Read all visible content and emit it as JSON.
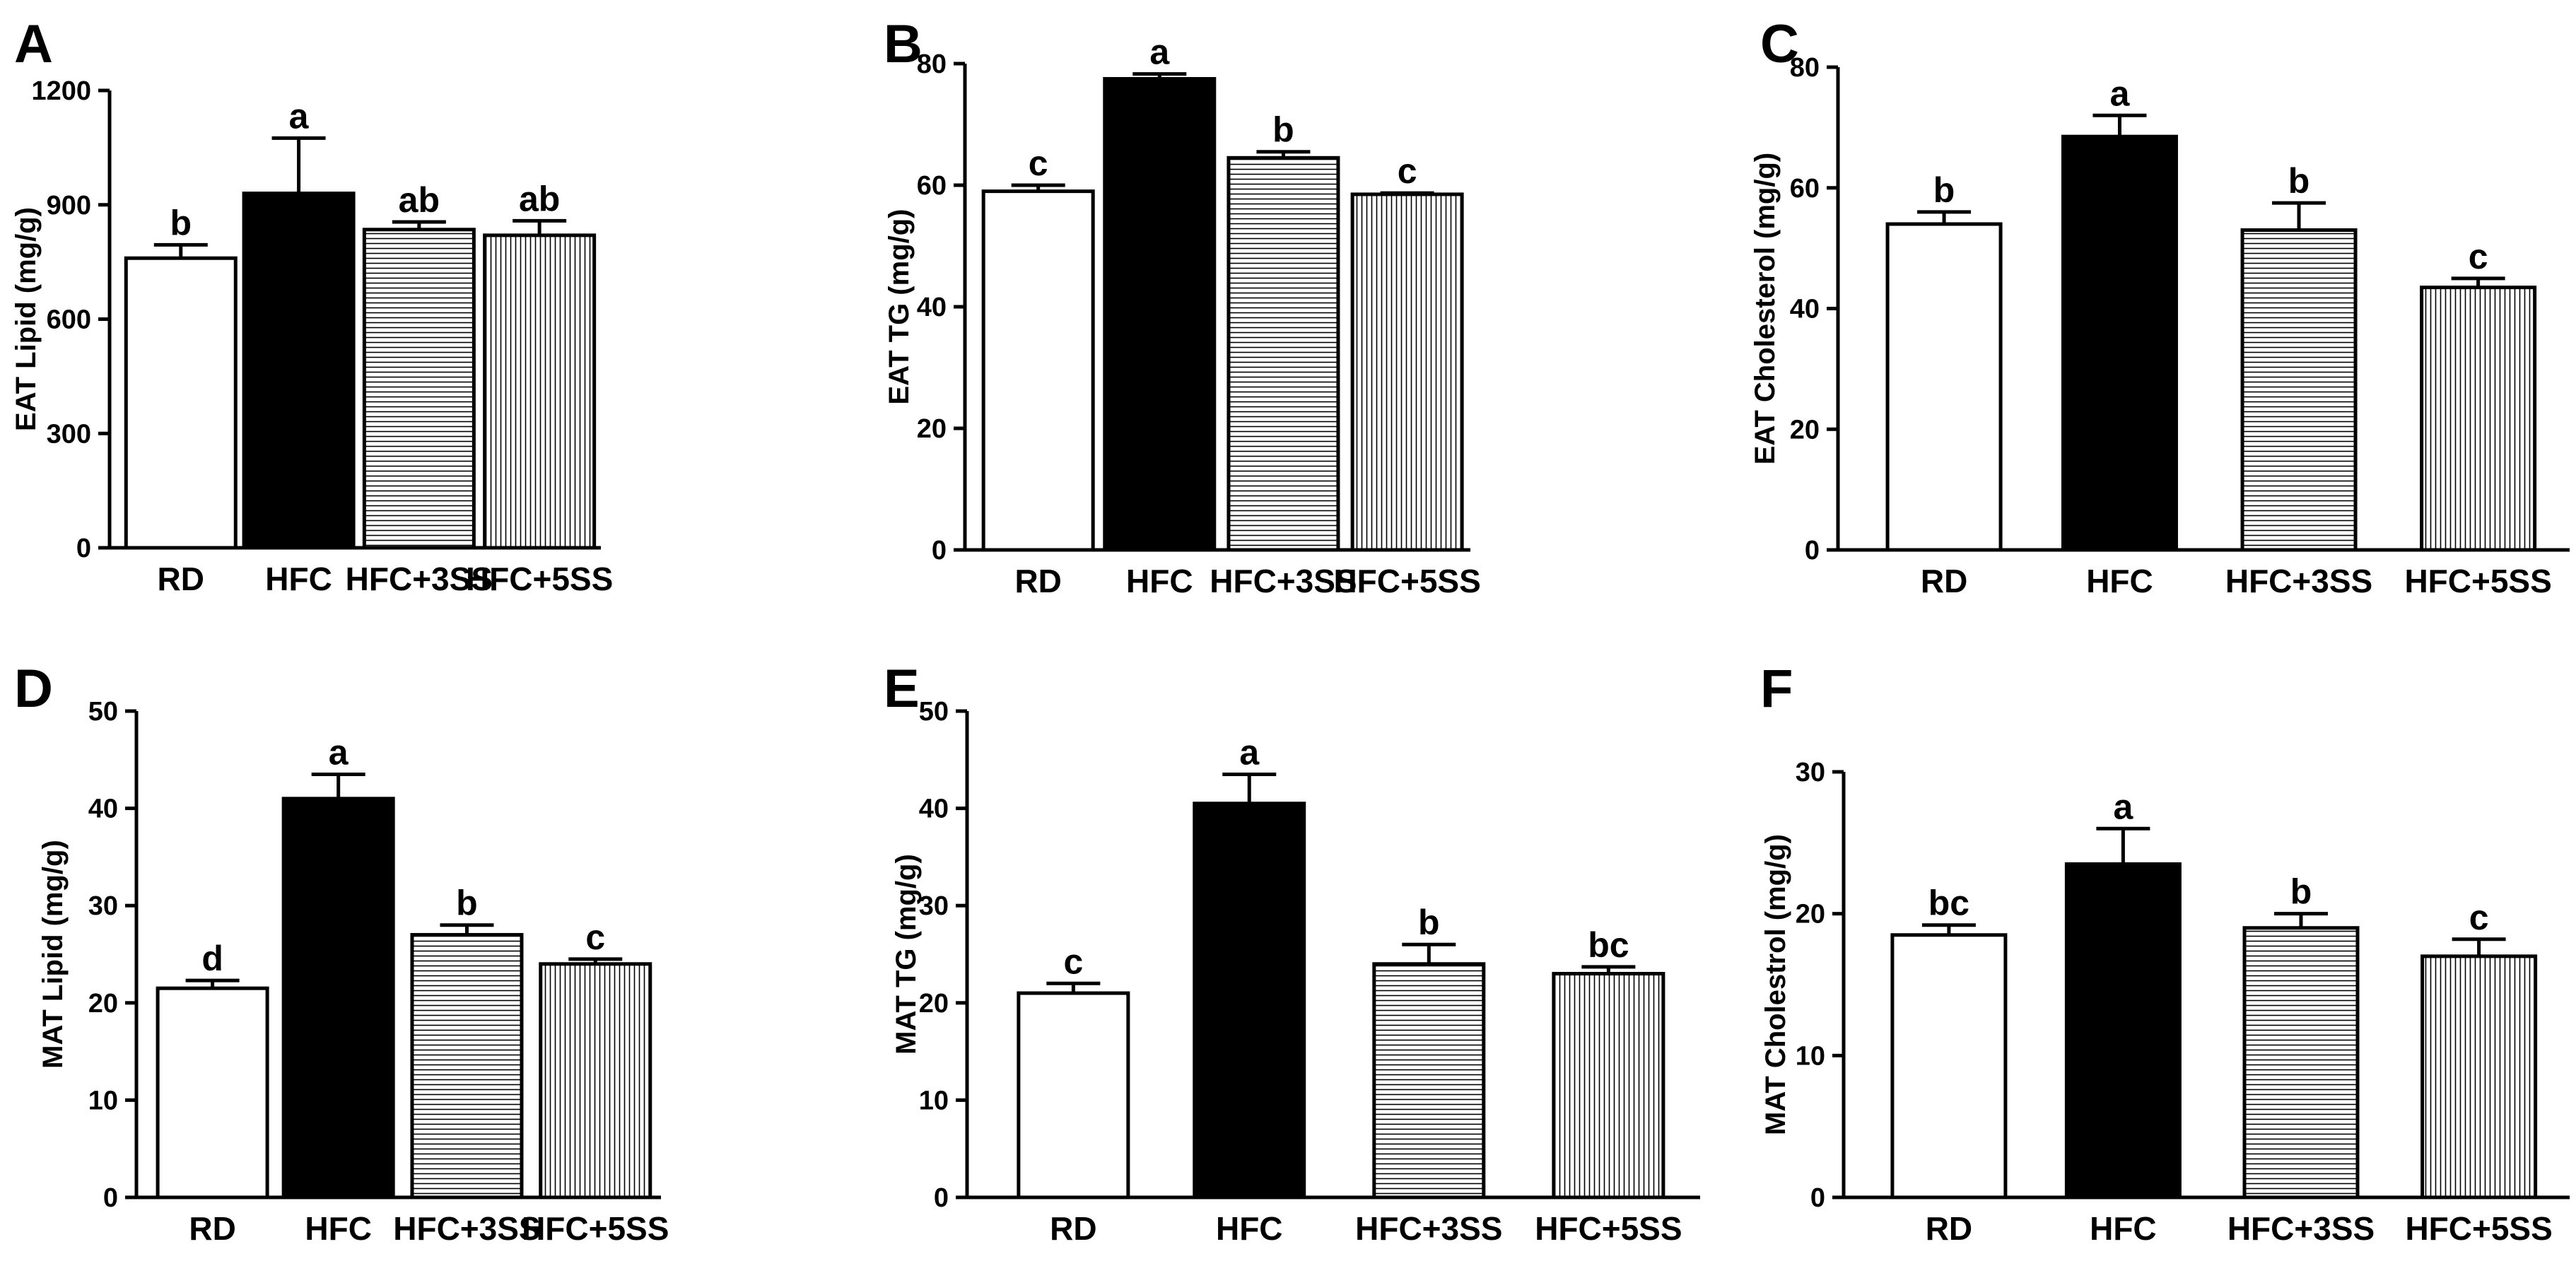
{
  "chart_data": [
    {
      "panel": "A",
      "type": "bar",
      "categories": [
        "RD",
        "HFC",
        "HFC+3SS",
        "HFC+5SS"
      ],
      "values": [
        760,
        930,
        835,
        820
      ],
      "errors": [
        35,
        145,
        20,
        38
      ],
      "letters": [
        "b",
        "a",
        "ab",
        "ab"
      ],
      "ylabel": "EAT Lipid (mg/g)",
      "ylim": [
        0,
        1200
      ],
      "ticks": [
        0,
        300,
        600,
        900,
        1200
      ]
    },
    {
      "panel": "B",
      "type": "bar",
      "categories": [
        "RD",
        "HFC",
        "HFC+3SS",
        "HFC+5SS"
      ],
      "values": [
        59,
        77.5,
        64.5,
        58.5
      ],
      "errors": [
        1,
        0.8,
        1,
        0.2
      ],
      "letters": [
        "c",
        "a",
        "b",
        "c"
      ],
      "ylabel": "EAT TG (mg/g)",
      "ylim": [
        0,
        80
      ],
      "ticks": [
        0,
        20,
        40,
        60,
        80
      ]
    },
    {
      "panel": "C",
      "type": "bar",
      "categories": [
        "RD",
        "HFC",
        "HFC+3SS",
        "HFC+5SS"
      ],
      "values": [
        54,
        68.5,
        53,
        43.5
      ],
      "errors": [
        2,
        3.5,
        4.5,
        1.5
      ],
      "letters": [
        "b",
        "a",
        "b",
        "c"
      ],
      "ylabel": "EAT Cholesterol (mg/g)",
      "ylim": [
        0,
        80
      ],
      "ticks": [
        0,
        20,
        40,
        60,
        80
      ]
    },
    {
      "panel": "D",
      "type": "bar",
      "categories": [
        "RD",
        "HFC",
        "HFC+3SS",
        "HFC+5SS"
      ],
      "values": [
        21.5,
        41,
        27,
        24
      ],
      "errors": [
        0.8,
        2.5,
        1,
        0.5
      ],
      "letters": [
        "d",
        "a",
        "b",
        "c"
      ],
      "ylabel": "MAT Lipid (mg/g)",
      "ylim": [
        0,
        50
      ],
      "ticks": [
        0,
        10,
        20,
        30,
        40,
        50
      ]
    },
    {
      "panel": "E",
      "type": "bar",
      "categories": [
        "RD",
        "HFC",
        "HFC+3SS",
        "HFC+5SS"
      ],
      "values": [
        21,
        40.5,
        24,
        23
      ],
      "errors": [
        1,
        3,
        2,
        0.7
      ],
      "letters": [
        "c",
        "a",
        "b",
        "bc"
      ],
      "ylabel": "MAT TG (mg/g)",
      "ylim": [
        0,
        50
      ],
      "ticks": [
        0,
        10,
        20,
        30,
        40,
        50
      ]
    },
    {
      "panel": "F",
      "type": "bar",
      "categories": [
        "RD",
        "HFC",
        "HFC+3SS",
        "HFC+5SS"
      ],
      "values": [
        18.5,
        23.5,
        19,
        17
      ],
      "errors": [
        0.7,
        2.5,
        1,
        1.2
      ],
      "letters": [
        "bc",
        "a",
        "b",
        "c"
      ],
      "ylabel": "MAT Cholestrol (mg/g)",
      "ylim": [
        0,
        30
      ],
      "ticks": [
        0,
        10,
        20,
        30
      ]
    }
  ],
  "colors": {
    "rd_fill": "#ffffff",
    "hfc_fill": "#000000",
    "hatch_line": "#000000",
    "hatch_background": "#ffffff",
    "axis": "#000000"
  }
}
